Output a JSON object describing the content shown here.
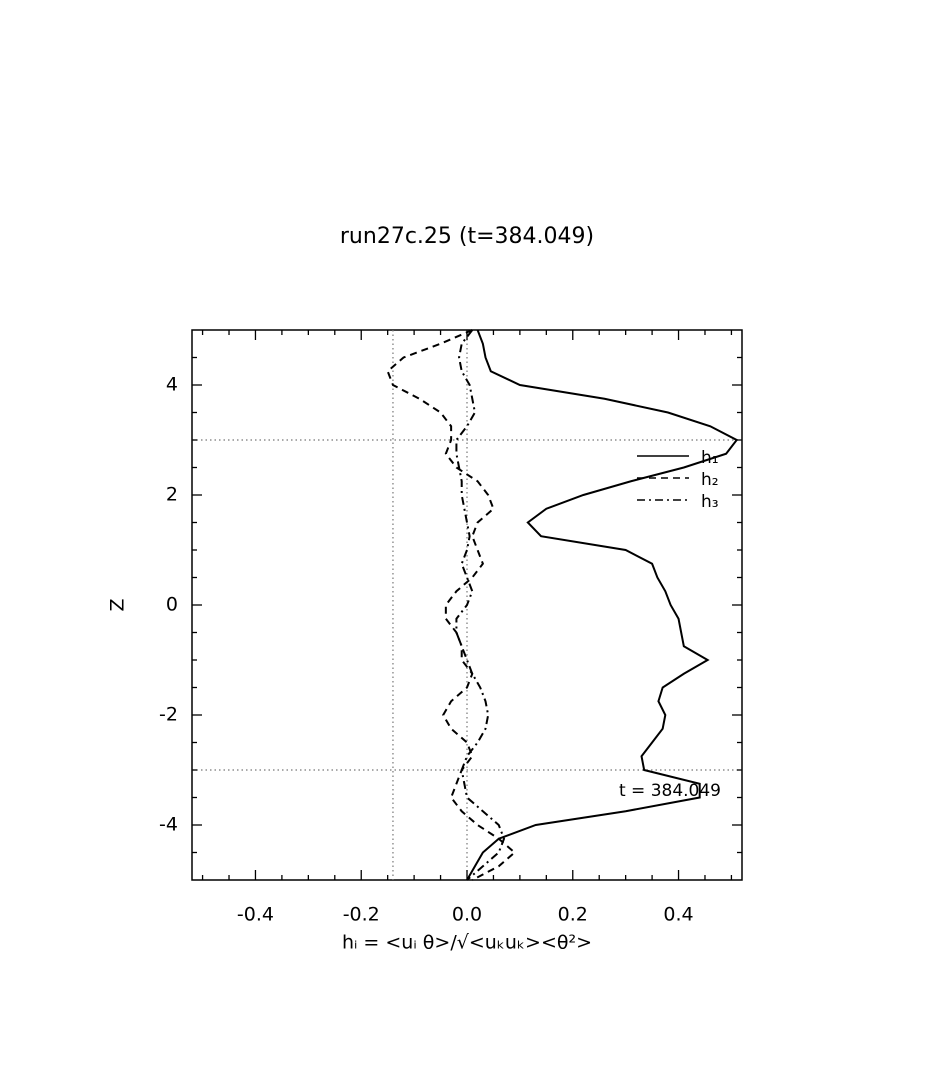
{
  "chart_data": {
    "type": "line",
    "title": "run27c.25 (t=384.049)",
    "xlabel": "hᵢ = <uᵢ θ>/√<uₖuₖ><θ²>",
    "ylabel": "Z",
    "annotation": "t = 384.049",
    "xlim": [
      -0.52,
      0.52
    ],
    "ylim": [
      -5,
      5
    ],
    "xticks": [
      -0.4,
      -0.2,
      {
        "value": 0,
        "label": "0.0"
      },
      0.2,
      0.4
    ],
    "yticks": [
      -4,
      -2,
      0,
      2,
      4
    ],
    "xminorticks": [
      -0.5,
      -0.45,
      -0.35,
      -0.3,
      -0.25,
      -0.15,
      -0.1,
      -0.05,
      0.05,
      0.1,
      0.15,
      0.25,
      0.3,
      0.35,
      0.45,
      0.5
    ],
    "yminorticks": [
      -4.5,
      -3.5,
      -3,
      -2.5,
      -1.5,
      -1,
      -0.5,
      0.5,
      1,
      1.5,
      2.5,
      3,
      3.5,
      4.5
    ],
    "reference_lines": {
      "x": [
        0,
        -0.14
      ],
      "y": [
        3,
        -3
      ]
    },
    "legend": "upper right",
    "y": [
      5,
      4.75,
      4.5,
      4.25,
      4,
      3.75,
      3.5,
      3.25,
      3,
      2.75,
      2.5,
      2.25,
      2,
      1.75,
      1.5,
      1.25,
      1,
      0.75,
      0.5,
      0.25,
      0,
      -0.25,
      -0.5,
      -0.75,
      -1,
      -1.25,
      -1.5,
      -1.75,
      -2,
      -2.25,
      -2.5,
      -2.75,
      -3,
      -3.25,
      -3.5,
      -3.75,
      -4,
      -4.25,
      -4.5,
      -4.75,
      -5
    ],
    "series": [
      {
        "name": "h₁",
        "color": "#000000",
        "style": "solid",
        "values": [
          0.02,
          0.03,
          0.035,
          0.045,
          0.1,
          0.26,
          0.38,
          0.46,
          0.51,
          0.49,
          0.41,
          0.31,
          0.22,
          0.15,
          0.115,
          0.14,
          0.3,
          0.35,
          0.36,
          0.375,
          0.385,
          0.4,
          0.405,
          0.41,
          0.455,
          0.41,
          0.37,
          0.362,
          0.375,
          0.37,
          0.35,
          0.33,
          0.335,
          0.44,
          0.44,
          0.3,
          0.13,
          0.06,
          0.03,
          0.015,
          0
        ]
      },
      {
        "name": "h₂",
        "color": "#000000",
        "style": "dashed",
        "values": [
          0.01,
          -0.05,
          -0.12,
          -0.15,
          -0.14,
          -0.09,
          -0.05,
          -0.03,
          -0.03,
          -0.04,
          -0.02,
          0.02,
          0.04,
          0.05,
          0.02,
          0.01,
          0.02,
          0.03,
          0.01,
          -0.02,
          -0.04,
          -0.04,
          -0.02,
          -0.01,
          -0.01,
          0.01,
          0,
          -0.03,
          -0.045,
          -0.03,
          0,
          0.01,
          -0.01,
          -0.02,
          -0.03,
          -0.01,
          0.02,
          0.06,
          0.09,
          0.06,
          0.01
        ]
      },
      {
        "name": "h₃",
        "color": "#000000",
        "style": "dashdot",
        "values": [
          0.01,
          -0.01,
          -0.015,
          -0.01,
          0.005,
          0.01,
          0.015,
          0,
          -0.02,
          -0.02,
          -0.015,
          -0.01,
          -0.01,
          -0.005,
          0,
          0.005,
          0,
          -0.01,
          0,
          0.01,
          0,
          -0.02,
          -0.02,
          -0.01,
          0,
          0.01,
          0.025,
          0.035,
          0.04,
          0.035,
          0.02,
          0,
          -0.01,
          -0.005,
          0,
          0.03,
          0.06,
          0.07,
          0.06,
          0.03,
          0
        ]
      }
    ]
  }
}
